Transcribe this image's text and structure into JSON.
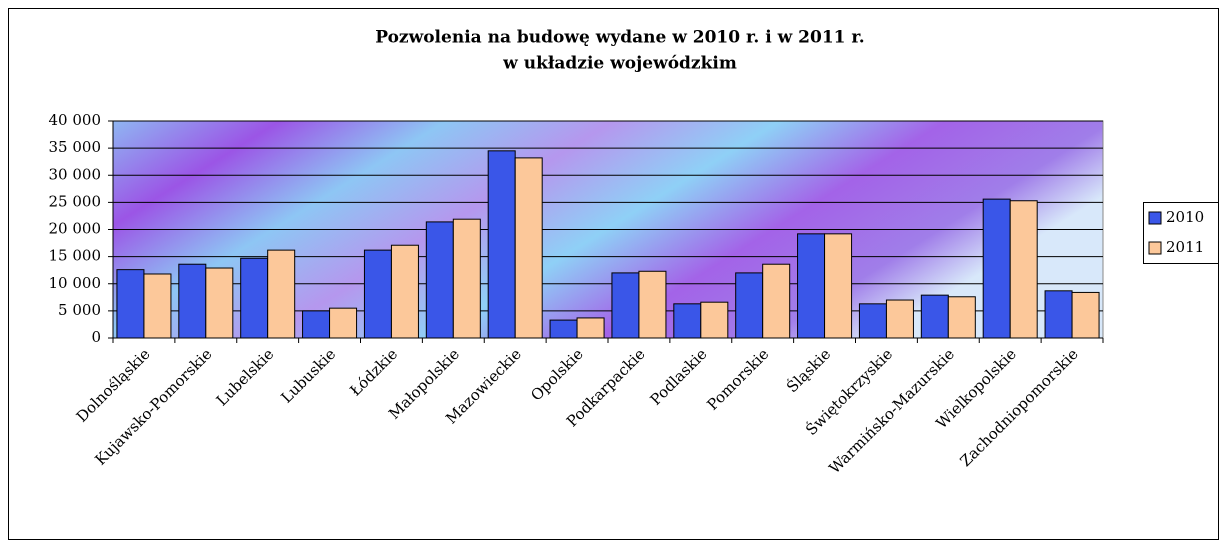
{
  "chart_data": {
    "type": "bar",
    "title": [
      "Pozwolenia na budowę wydane w  2010 r. i w 2011 r.",
      "w układzie wojewódzkim"
    ],
    "categories": [
      "Dolnośląskie",
      "Kujawsko-Pomorskie",
      "Lubelskie",
      "Lubuskie",
      "Łódzkie",
      "Małopolskie",
      "Mazowieckie",
      "Opolskie",
      "Podkarpackie",
      "Podlaskie",
      "Pomorskie",
      "Śląskie",
      "Świętokrzyskie",
      "Warmińsko-Mazurskie",
      "Wielkopolskie",
      "Zachodniopomorskie"
    ],
    "series": [
      {
        "name": "2010",
        "color": "#3a56e8",
        "values": [
          12600,
          13600,
          14700,
          5000,
          16200,
          21400,
          34500,
          3300,
          12000,
          6300,
          12000,
          19200,
          6300,
          7900,
          25600,
          8700
        ]
      },
      {
        "name": "2011",
        "color": "#fcc89a",
        "values": [
          11800,
          12900,
          16200,
          5500,
          17100,
          21900,
          33200,
          3700,
          12300,
          6600,
          13600,
          19200,
          7000,
          7600,
          25300,
          8400
        ]
      }
    ],
    "ylim": [
      0,
      40000
    ],
    "yticks": [
      0,
      {
        "value": 5000,
        "label": "5 000"
      },
      {
        "value": 10000,
        "label": "10 000"
      },
      {
        "value": 15000,
        "label": "15 000"
      },
      {
        "value": 20000,
        "label": "20 000"
      },
      {
        "value": 25000,
        "label": "25 000"
      },
      {
        "value": 30000,
        "label": "30 000"
      },
      {
        "value": 35000,
        "label": "35 000"
      },
      {
        "value": 40000,
        "label": "40 000"
      }
    ],
    "grid": true,
    "legend": "right"
  }
}
